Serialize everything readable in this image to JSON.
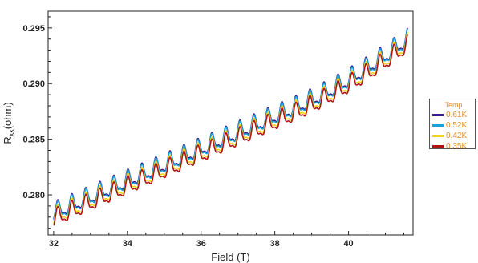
{
  "chart_data": {
    "type": "line",
    "xlabel": "Field (T)",
    "ylabel_main": "R",
    "ylabel_sub": "xx",
    "ylabel_rest": "(ohm)",
    "xlim": [
      31.85,
      41.75
    ],
    "ylim": [
      0.2764,
      0.2965
    ],
    "xticks": [
      32,
      34,
      36,
      38,
      40
    ],
    "yticks": [
      0.28,
      0.285,
      0.29,
      0.295
    ],
    "xtick_labels": [
      "32",
      "34",
      "36",
      "38",
      "40"
    ],
    "ytick_labels": [
      "0.280",
      "0.285",
      "0.290",
      "0.295"
    ],
    "grid": false,
    "legend_position": "right",
    "legend_title": "Temp",
    "oscillation_period_T": 0.38,
    "series": [
      {
        "name": "0.61K",
        "color": "#3a1c8a",
        "x": [
          32.0,
          32.1,
          32.2,
          32.3,
          33.0,
          34.0,
          35.0,
          36.0,
          37.0,
          38.0,
          39.0,
          40.0,
          41.0,
          41.4,
          41.55
        ],
        "y_base": [
          0.2786,
          0.2799,
          0.2786,
          0.2774,
          0.28,
          0.2819,
          0.2835,
          0.2849,
          0.2862,
          0.2875,
          0.2887,
          0.2905,
          0.293,
          0.2952,
          0.294
        ],
        "amplitude": 0.0013,
        "offset": 0.0002
      },
      {
        "name": "0.52K",
        "color": "#1aa2d8",
        "x": [
          32.0,
          32.1,
          32.2,
          32.3,
          33.0,
          34.0,
          35.0,
          36.0,
          37.0,
          38.0,
          39.0,
          40.0,
          41.0,
          41.4,
          41.55
        ],
        "y_base": [
          0.2786,
          0.2799,
          0.2786,
          0.2774,
          0.28,
          0.2819,
          0.2835,
          0.2849,
          0.2862,
          0.2875,
          0.2887,
          0.2905,
          0.293,
          0.2952,
          0.294
        ],
        "amplitude": 0.0013,
        "offset": 0.0001
      },
      {
        "name": "0.42K",
        "color": "#f5d21a",
        "x": [
          32.0,
          32.1,
          32.2,
          32.3,
          33.0,
          34.0,
          35.0,
          36.0,
          37.0,
          38.0,
          39.0,
          40.0,
          41.0,
          41.4,
          41.55
        ],
        "y_base": [
          0.2786,
          0.2799,
          0.2786,
          0.2774,
          0.28,
          0.2819,
          0.2835,
          0.2849,
          0.2862,
          0.2875,
          0.2887,
          0.2905,
          0.293,
          0.2952,
          0.294
        ],
        "amplitude": 0.0013,
        "offset": -0.0002
      },
      {
        "name": "0.35K",
        "color": "#b01515",
        "x": [
          32.0,
          32.1,
          32.2,
          32.3,
          33.0,
          34.0,
          35.0,
          36.0,
          37.0,
          38.0,
          39.0,
          40.0,
          41.0,
          41.4,
          41.55
        ],
        "y_base": [
          0.2786,
          0.2799,
          0.2786,
          0.2774,
          0.28,
          0.2819,
          0.2835,
          0.2849,
          0.2862,
          0.2875,
          0.2887,
          0.2905,
          0.293,
          0.2952,
          0.294
        ],
        "amplitude": 0.0013,
        "offset": -0.0004
      }
    ]
  }
}
